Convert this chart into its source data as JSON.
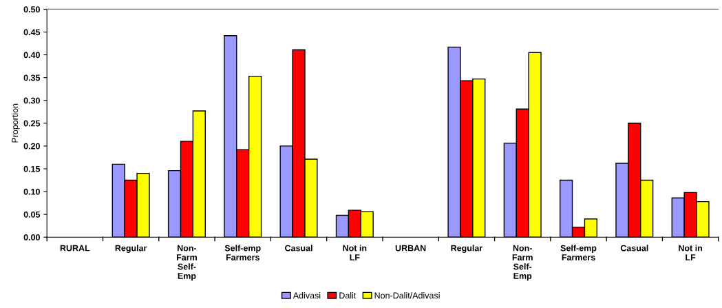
{
  "chart_data": {
    "type": "bar",
    "ylabel": "Proportion",
    "categories": [
      "RURAL",
      "Regular",
      "Non-\nFarm\nSelf-\nEmp",
      "Self-emp\nFarmers",
      "Casual",
      "Not in\nLF",
      "URBAN",
      "Regular",
      "Non-\nFarm\nSelf-\nEmp",
      "Self-emp\nFarmers",
      "Casual",
      "Not in\nLF"
    ],
    "series": [
      {
        "name": "Adivasi",
        "color": "#9999ff",
        "values": [
          null,
          0.16,
          0.146,
          0.442,
          0.2,
          0.048,
          null,
          0.417,
          0.206,
          0.125,
          0.162,
          0.086
        ]
      },
      {
        "name": "Dalit",
        "color": "#ff0000",
        "values": [
          null,
          0.125,
          0.21,
          0.192,
          0.411,
          0.059,
          null,
          0.343,
          0.281,
          0.022,
          0.25,
          0.098
        ]
      },
      {
        "name": "Non-Dalit/Adivasi",
        "color": "#ffff00",
        "values": [
          null,
          0.14,
          0.277,
          0.353,
          0.171,
          0.056,
          null,
          0.347,
          0.405,
          0.04,
          0.125,
          0.078
        ]
      }
    ],
    "ylim": [
      0,
      0.5
    ],
    "yticks": [
      {
        "value": 0,
        "label": "0.00"
      },
      {
        "value": 0.05,
        "label": "0.05"
      },
      {
        "value": 0.1,
        "label": "0.10"
      },
      {
        "value": 0.15,
        "label": "0.15"
      },
      {
        "value": 0.2,
        "label": "0.20"
      },
      {
        "value": 0.25,
        "label": "0.25"
      },
      {
        "value": 0.3,
        "label": "0.30"
      },
      {
        "value": 0.35,
        "label": "0.35"
      },
      {
        "value": 0.4,
        "label": "0.40"
      },
      {
        "value": 0.45,
        "label": "0.45"
      },
      {
        "value": 0.5,
        "label": "0.50"
      }
    ],
    "grid": false,
    "legend": "bottom"
  }
}
